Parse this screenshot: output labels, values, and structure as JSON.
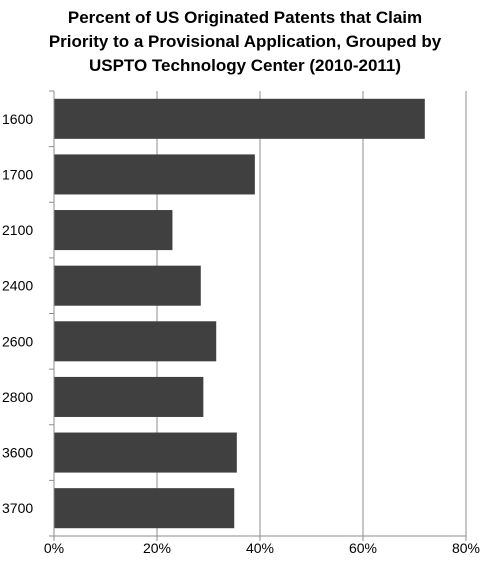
{
  "chart_data": {
    "type": "bar",
    "orientation": "horizontal",
    "title_lines": [
      "Percent of US Originated Patents that Claim",
      "Priority to a Provisional Application, Grouped by",
      "USPTO Technology Center (2010-2011)"
    ],
    "categories": [
      "1600",
      "1700",
      "2100",
      "2400",
      "2600",
      "2800",
      "3600",
      "3700"
    ],
    "values": [
      72,
      39,
      23,
      28.5,
      31.5,
      29,
      35.5,
      35
    ],
    "xlim": [
      0,
      80
    ],
    "x_ticks": [
      0,
      20,
      40,
      60,
      80
    ],
    "x_tick_labels": [
      "0%",
      "20%",
      "40%",
      "60%",
      "80%"
    ],
    "xlabel": "",
    "ylabel": "",
    "grid": "vertical",
    "legend": "none",
    "bar_color": "#404040",
    "grid_color": "#8c8c8c"
  }
}
